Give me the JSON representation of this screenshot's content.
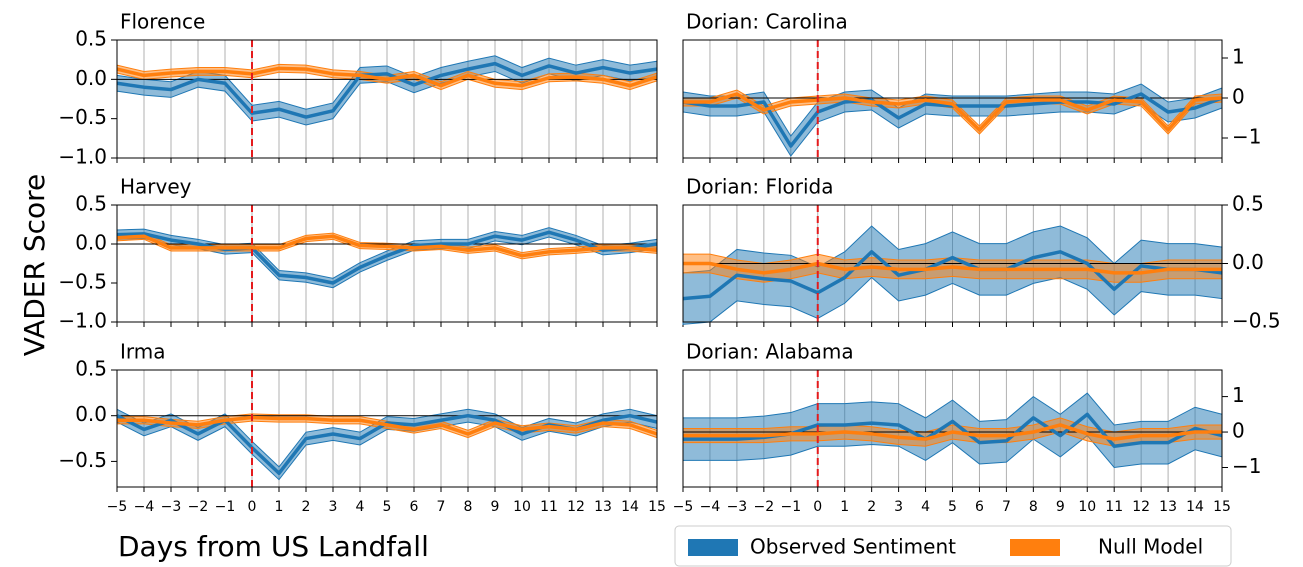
{
  "ylabel": "VADER Score",
  "xlabel": "Days from US Landfall",
  "chart_data": [
    {
      "type": "line",
      "title": "Florence",
      "yaxis_side": "left",
      "show_xtick_labels": false,
      "grid": true,
      "vline": 0,
      "xlim": [
        -5,
        15
      ],
      "ylim": [
        -1,
        0.5
      ],
      "yticks": [
        0.5,
        {
          "value": 0,
          "label": "0.0"
        },
        {
          "value": -0.5,
          "label": "−0.5"
        },
        {
          "value": -1,
          "label": "−1.0"
        }
      ],
      "xticks": [
        {
          "value": -5,
          "label": "−5"
        },
        {
          "value": -4,
          "label": "−4"
        },
        {
          "value": -3,
          "label": "−3"
        },
        {
          "value": -2,
          "label": "−2"
        },
        {
          "value": -1,
          "label": "−1"
        },
        0,
        1,
        2,
        3,
        4,
        5,
        6,
        7,
        8,
        9,
        10,
        11,
        12,
        13,
        14,
        15
      ],
      "x": [
        -5,
        -4,
        -3,
        -2,
        -1,
        0,
        1,
        2,
        3,
        4,
        5,
        6,
        7,
        8,
        9,
        10,
        11,
        12,
        13,
        14,
        15
      ],
      "series": [
        {
          "name": "Observed Sentiment",
          "color": "#1f77b4",
          "values": [
            -0.05,
            -0.1,
            -0.13,
            0.0,
            -0.05,
            -0.43,
            -0.38,
            -0.48,
            -0.4,
            0.05,
            0.07,
            -0.07,
            0.05,
            0.13,
            0.2,
            0.05,
            0.17,
            0.08,
            0.15,
            0.08,
            0.13
          ],
          "errors": [
            0.1,
            0.1,
            0.1,
            0.1,
            0.1,
            0.1,
            0.1,
            0.1,
            0.1,
            0.1,
            0.1,
            0.1,
            0.1,
            0.1,
            0.1,
            0.1,
            0.1,
            0.1,
            0.1,
            0.1,
            0.1
          ]
        },
        {
          "name": "Null Model",
          "color": "#ff7f0e",
          "values": [
            0.13,
            0.05,
            0.08,
            0.1,
            0.1,
            0.07,
            0.14,
            0.13,
            0.07,
            0.05,
            0.0,
            0.05,
            -0.08,
            0.05,
            -0.05,
            -0.08,
            0.02,
            0.03,
            0.0,
            -0.08,
            0.03
          ],
          "errors": [
            0.05,
            0.05,
            0.05,
            0.05,
            0.05,
            0.05,
            0.05,
            0.05,
            0.05,
            0.05,
            0.05,
            0.05,
            0.05,
            0.05,
            0.05,
            0.05,
            0.05,
            0.05,
            0.05,
            0.05,
            0.05
          ]
        }
      ]
    },
    {
      "type": "line",
      "title": "Harvey",
      "yaxis_side": "left",
      "show_xtick_labels": false,
      "grid": true,
      "vline": 0,
      "xlim": [
        -5,
        15
      ],
      "ylim": [
        -1,
        0.5
      ],
      "yticks": [
        0.5,
        {
          "value": 0,
          "label": "0.0"
        },
        {
          "value": -0.5,
          "label": "−0.5"
        },
        {
          "value": -1,
          "label": "−1.0"
        }
      ],
      "xticks": [
        {
          "value": -5,
          "label": "−5"
        },
        {
          "value": -4,
          "label": "−4"
        },
        {
          "value": -3,
          "label": "−3"
        },
        {
          "value": -2,
          "label": "−2"
        },
        {
          "value": -1,
          "label": "−1"
        },
        0,
        1,
        2,
        3,
        4,
        5,
        6,
        7,
        8,
        9,
        10,
        11,
        12,
        13,
        14,
        15
      ],
      "x": [
        -5,
        -4,
        -3,
        -2,
        -1,
        0,
        1,
        2,
        3,
        4,
        5,
        6,
        7,
        8,
        9,
        10,
        11,
        12,
        13,
        14,
        15
      ],
      "series": [
        {
          "name": "Observed Sentiment",
          "color": "#1f77b4",
          "values": [
            0.12,
            0.13,
            0.05,
            0.0,
            -0.07,
            -0.05,
            -0.4,
            -0.43,
            -0.5,
            -0.3,
            -0.15,
            -0.02,
            0.0,
            0.0,
            0.1,
            0.05,
            0.15,
            0.05,
            -0.08,
            -0.05,
            0.0
          ],
          "errors": [
            0.06,
            0.06,
            0.06,
            0.06,
            0.06,
            0.06,
            0.06,
            0.06,
            0.06,
            0.06,
            0.06,
            0.06,
            0.06,
            0.06,
            0.06,
            0.06,
            0.06,
            0.06,
            0.06,
            0.06,
            0.06
          ]
        },
        {
          "name": "Null Model",
          "color": "#ff7f0e",
          "values": [
            0.08,
            0.1,
            -0.05,
            -0.05,
            -0.05,
            -0.05,
            -0.05,
            0.07,
            0.1,
            -0.02,
            -0.03,
            -0.05,
            -0.03,
            -0.08,
            -0.05,
            -0.15,
            -0.1,
            -0.08,
            -0.05,
            -0.05,
            -0.08
          ],
          "errors": [
            0.04,
            0.04,
            0.04,
            0.04,
            0.04,
            0.04,
            0.04,
            0.04,
            0.04,
            0.04,
            0.04,
            0.04,
            0.04,
            0.04,
            0.04,
            0.04,
            0.04,
            0.04,
            0.04,
            0.04,
            0.04
          ]
        }
      ]
    },
    {
      "type": "line",
      "title": "Irma",
      "yaxis_side": "left",
      "show_xtick_labels": true,
      "grid": true,
      "vline": 0,
      "xlim": [
        -5,
        15
      ],
      "ylim": [
        -0.78,
        0.5
      ],
      "yticks": [
        0.5,
        {
          "value": 0,
          "label": "0.0"
        },
        {
          "value": -0.5,
          "label": "−0.5"
        }
      ],
      "xticks": [
        {
          "value": -5,
          "label": "−5"
        },
        {
          "value": -4,
          "label": "−4"
        },
        {
          "value": -3,
          "label": "−3"
        },
        {
          "value": -2,
          "label": "−2"
        },
        {
          "value": -1,
          "label": "−1"
        },
        0,
        1,
        2,
        3,
        4,
        5,
        6,
        7,
        8,
        9,
        10,
        11,
        12,
        13,
        14,
        15
      ],
      "x": [
        -5,
        -4,
        -3,
        -2,
        -1,
        0,
        1,
        2,
        3,
        4,
        5,
        6,
        7,
        8,
        9,
        10,
        11,
        12,
        13,
        14,
        15
      ],
      "series": [
        {
          "name": "Observed Sentiment",
          "color": "#1f77b4",
          "values": [
            0.0,
            -0.15,
            -0.05,
            -0.2,
            -0.05,
            -0.35,
            -0.63,
            -0.25,
            -0.2,
            -0.25,
            -0.08,
            -0.1,
            -0.05,
            0.0,
            -0.05,
            -0.2,
            -0.1,
            -0.15,
            -0.05,
            0.0,
            -0.07
          ],
          "errors": [
            0.07,
            0.07,
            0.07,
            0.07,
            0.07,
            0.07,
            0.07,
            0.07,
            0.07,
            0.07,
            0.07,
            0.07,
            0.07,
            0.07,
            0.07,
            0.07,
            0.07,
            0.07,
            0.07,
            0.07,
            0.07
          ]
        },
        {
          "name": "Null Model",
          "color": "#ff7f0e",
          "values": [
            -0.05,
            -0.05,
            -0.08,
            -0.1,
            -0.05,
            -0.02,
            -0.03,
            -0.03,
            -0.05,
            -0.05,
            -0.1,
            -0.15,
            -0.1,
            -0.2,
            -0.08,
            -0.15,
            -0.12,
            -0.15,
            -0.08,
            -0.1,
            -0.2
          ],
          "errors": [
            0.04,
            0.04,
            0.04,
            0.04,
            0.04,
            0.04,
            0.04,
            0.04,
            0.04,
            0.04,
            0.04,
            0.04,
            0.04,
            0.04,
            0.04,
            0.04,
            0.04,
            0.04,
            0.04,
            0.04,
            0.04
          ]
        }
      ]
    },
    {
      "type": "line",
      "title": "Dorian: Carolina",
      "yaxis_side": "right",
      "show_xtick_labels": false,
      "grid": true,
      "vline": 0,
      "xlim": [
        -5,
        15
      ],
      "ylim": [
        -1.5,
        1.45
      ],
      "yticks": [
        1,
        0,
        {
          "value": -1,
          "label": "−1"
        }
      ],
      "xticks": [
        {
          "value": -5,
          "label": "−5"
        },
        {
          "value": -4,
          "label": "−4"
        },
        {
          "value": -3,
          "label": "−3"
        },
        {
          "value": -2,
          "label": "−2"
        },
        {
          "value": -1,
          "label": "−1"
        },
        0,
        1,
        2,
        3,
        4,
        5,
        6,
        7,
        8,
        9,
        10,
        11,
        12,
        13,
        14,
        15
      ],
      "x": [
        -5,
        -4,
        -3,
        -2,
        -1,
        0,
        1,
        2,
        3,
        4,
        5,
        6,
        7,
        8,
        9,
        10,
        11,
        12,
        13,
        14,
        15
      ],
      "series": [
        {
          "name": "Observed Sentiment",
          "color": "#1f77b4",
          "values": [
            -0.1,
            -0.2,
            -0.2,
            -0.1,
            -1.2,
            -0.35,
            -0.1,
            -0.05,
            -0.5,
            -0.15,
            -0.2,
            -0.2,
            -0.2,
            -0.15,
            -0.1,
            -0.1,
            -0.15,
            0.1,
            -0.35,
            -0.25,
            0.0
          ],
          "errors": [
            0.25,
            0.25,
            0.25,
            0.25,
            0.25,
            0.25,
            0.25,
            0.25,
            0.25,
            0.25,
            0.25,
            0.25,
            0.25,
            0.25,
            0.25,
            0.25,
            0.25,
            0.25,
            0.25,
            0.25,
            0.25
          ]
        },
        {
          "name": "Null Model",
          "color": "#ff7f0e",
          "values": [
            -0.1,
            -0.1,
            0.1,
            -0.3,
            -0.1,
            -0.05,
            0.0,
            -0.1,
            -0.15,
            -0.05,
            -0.15,
            -0.8,
            -0.1,
            -0.05,
            -0.05,
            -0.3,
            -0.05,
            -0.1,
            -0.8,
            -0.05,
            0.0
          ],
          "errors": [
            0.1,
            0.1,
            0.1,
            0.1,
            0.1,
            0.1,
            0.1,
            0.1,
            0.1,
            0.1,
            0.1,
            0.1,
            0.1,
            0.1,
            0.1,
            0.1,
            0.1,
            0.1,
            0.1,
            0.1,
            0.1
          ]
        }
      ]
    },
    {
      "type": "line",
      "title": "Dorian: Florida",
      "yaxis_side": "right",
      "show_xtick_labels": false,
      "grid": true,
      "vline": 0,
      "xlim": [
        -5,
        15
      ],
      "ylim": [
        -0.5,
        0.5
      ],
      "yticks": [
        0.5,
        {
          "value": 0,
          "label": "0.0"
        },
        {
          "value": -0.5,
          "label": "−0.5"
        }
      ],
      "xticks": [
        {
          "value": -5,
          "label": "−5"
        },
        {
          "value": -4,
          "label": "−4"
        },
        {
          "value": -3,
          "label": "−3"
        },
        {
          "value": -2,
          "label": "−2"
        },
        {
          "value": -1,
          "label": "−1"
        },
        0,
        1,
        2,
        3,
        4,
        5,
        6,
        7,
        8,
        9,
        10,
        11,
        12,
        13,
        14,
        15
      ],
      "x": [
        -5,
        -4,
        -3,
        -2,
        -1,
        0,
        1,
        2,
        3,
        4,
        5,
        6,
        7,
        8,
        9,
        10,
        11,
        12,
        13,
        14,
        15
      ],
      "series": [
        {
          "name": "Observed Sentiment",
          "color": "#1f77b4",
          "values": [
            -0.3,
            -0.28,
            -0.1,
            -0.13,
            -0.15,
            -0.25,
            -0.12,
            0.1,
            -0.1,
            -0.05,
            0.05,
            -0.05,
            -0.05,
            0.05,
            0.1,
            0.0,
            -0.22,
            -0.02,
            -0.05,
            -0.05,
            -0.08
          ],
          "errors": [
            0.22,
            0.22,
            0.22,
            0.22,
            0.22,
            0.22,
            0.22,
            0.22,
            0.22,
            0.22,
            0.22,
            0.22,
            0.22,
            0.22,
            0.22,
            0.22,
            0.22,
            0.22,
            0.22,
            0.22,
            0.22
          ]
        },
        {
          "name": "Null Model",
          "color": "#ff7f0e",
          "values": [
            0.0,
            0.0,
            -0.05,
            -0.08,
            -0.05,
            0.0,
            -0.05,
            -0.03,
            -0.05,
            -0.05,
            -0.03,
            -0.05,
            -0.05,
            -0.05,
            -0.05,
            -0.05,
            -0.08,
            -0.08,
            -0.05,
            -0.05,
            -0.05
          ],
          "errors": [
            0.08,
            0.08,
            0.08,
            0.08,
            0.08,
            0.08,
            0.08,
            0.08,
            0.08,
            0.08,
            0.08,
            0.08,
            0.08,
            0.08,
            0.08,
            0.08,
            0.08,
            0.08,
            0.08,
            0.08,
            0.08
          ]
        }
      ]
    },
    {
      "type": "line",
      "title": "Dorian: Alabama",
      "yaxis_side": "right",
      "show_xtick_labels": true,
      "grid": true,
      "vline": 0,
      "xlim": [
        -5,
        15
      ],
      "ylim": [
        -1.55,
        1.75
      ],
      "yticks": [
        1,
        0,
        {
          "value": -1,
          "label": "−1"
        }
      ],
      "xticks": [
        {
          "value": -5,
          "label": "−5"
        },
        {
          "value": -4,
          "label": "−4"
        },
        {
          "value": -3,
          "label": "−3"
        },
        {
          "value": -2,
          "label": "−2"
        },
        {
          "value": -1,
          "label": "−1"
        },
        0,
        1,
        2,
        3,
        4,
        5,
        6,
        7,
        8,
        9,
        10,
        11,
        12,
        13,
        14,
        15
      ],
      "x": [
        -5,
        -4,
        -3,
        -2,
        -1,
        0,
        1,
        2,
        3,
        4,
        5,
        6,
        7,
        8,
        9,
        10,
        11,
        12,
        13,
        14,
        15
      ],
      "series": [
        {
          "name": "Observed Sentiment",
          "color": "#1f77b4",
          "values": [
            -0.2,
            -0.2,
            -0.2,
            -0.15,
            -0.05,
            0.2,
            0.2,
            0.25,
            0.2,
            -0.2,
            0.3,
            -0.3,
            -0.25,
            0.4,
            -0.1,
            0.5,
            -0.4,
            -0.3,
            -0.3,
            0.1,
            -0.1
          ],
          "errors": [
            0.6,
            0.6,
            0.6,
            0.6,
            0.6,
            0.6,
            0.6,
            0.6,
            0.6,
            0.6,
            0.6,
            0.6,
            0.6,
            0.6,
            0.6,
            0.6,
            0.6,
            0.6,
            0.6,
            0.6,
            0.6
          ]
        },
        {
          "name": "Null Model",
          "color": "#ff7f0e",
          "values": [
            -0.1,
            -0.1,
            -0.1,
            -0.1,
            -0.05,
            -0.05,
            0.0,
            -0.05,
            -0.15,
            -0.2,
            0.0,
            -0.1,
            -0.1,
            0.0,
            0.2,
            -0.05,
            -0.2,
            -0.1,
            -0.1,
            0.0,
            0.0
          ],
          "errors": [
            0.2,
            0.2,
            0.2,
            0.2,
            0.2,
            0.2,
            0.2,
            0.2,
            0.2,
            0.2,
            0.2,
            0.2,
            0.2,
            0.2,
            0.2,
            0.2,
            0.2,
            0.2,
            0.2,
            0.2,
            0.2
          ]
        }
      ]
    }
  ]
}
